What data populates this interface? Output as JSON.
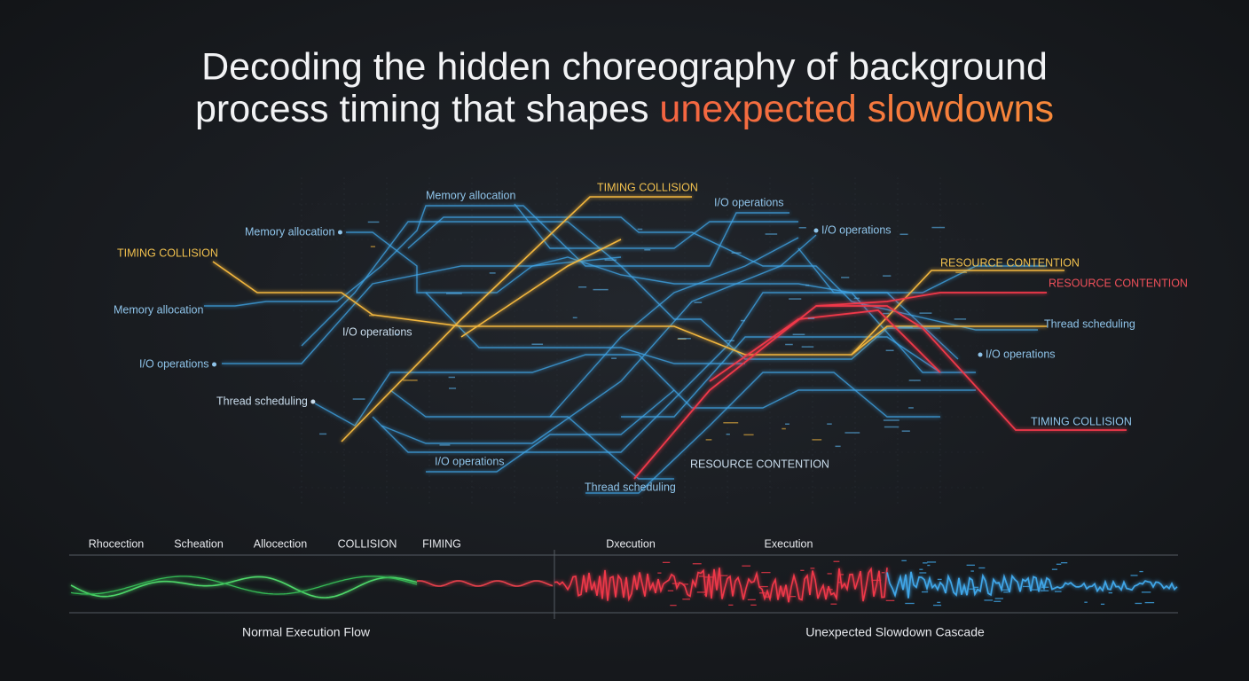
{
  "header": {
    "line1": "Decoding the hidden choreography of background",
    "line2": "process timing that shapes ",
    "highlight": "unexpected slowdowns"
  },
  "network": {
    "labels": [
      {
        "text": "Memory allocation",
        "color": "#8fc4ea"
      },
      {
        "text": "TIMING COLLISION",
        "color": "#f2c14e"
      },
      {
        "text": "I/O operations",
        "color": "#8fc4ea"
      },
      {
        "text": "Memory allocation",
        "color": "#8fc4ea"
      },
      {
        "text": "I/O operations",
        "color": "#8fc4ea"
      },
      {
        "text": "TIMING COLLISION",
        "color": "#f2c14e"
      },
      {
        "text": "RESOURCE CONTENTION",
        "color": "#f2c14e"
      },
      {
        "text": "RESOURCE CONTENTION",
        "color": "#f0505a"
      },
      {
        "text": "Memory allocation",
        "color": "#8fc4ea"
      },
      {
        "text": "Thread scheduling",
        "color": "#8fc4ea"
      },
      {
        "text": "I/O operations",
        "color": "#c9dcec"
      },
      {
        "text": "I/O operations",
        "color": "#8fc4ea"
      },
      {
        "text": "I/O operations",
        "color": "#8fc4ea"
      },
      {
        "text": "Thread scheduling",
        "color": "#c9dcec"
      },
      {
        "text": "TIMING COLLISION",
        "color": "#8fc4ea"
      },
      {
        "text": "I/O operations",
        "color": "#8fc4ea"
      },
      {
        "text": "RESOURCE CONTENTION",
        "color": "#c9dcec"
      },
      {
        "text": "Thread scheduling",
        "color": "#8fc4ea"
      }
    ]
  },
  "timeline": {
    "labels": [
      "Rhocection",
      "Scheation",
      "Allocection",
      "COLLISION",
      "FIMING",
      "Dxecution",
      "Execution"
    ],
    "captions": [
      "Normal Execution Flow",
      "Unexpected Slowdown Cascade"
    ]
  }
}
